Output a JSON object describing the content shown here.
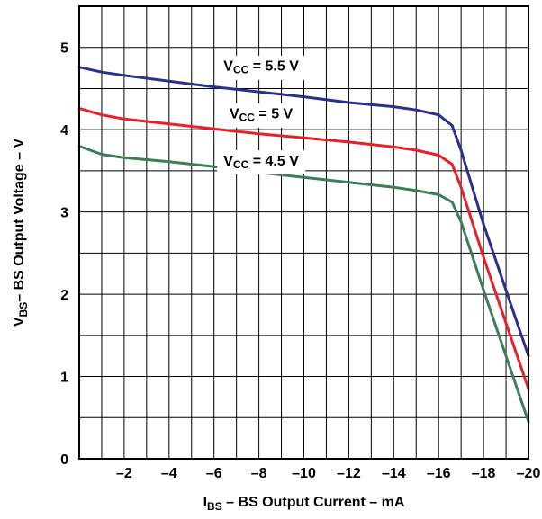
{
  "chart_data": {
    "type": "line",
    "xlabel": {
      "main": "I",
      "sub": "BS",
      "rest": " – BS Output Current – mA"
    },
    "ylabel": {
      "main": "V",
      "sub": "BS",
      "rest": "– BS Output Voltage – V"
    },
    "xlim": [
      0,
      -20
    ],
    "ylim": [
      0,
      5.5
    ],
    "x_ticks": [
      0,
      -2,
      -4,
      -6,
      -8,
      -10,
      -12,
      -14,
      -16,
      -18,
      -20
    ],
    "x_tick_labels": [
      "",
      "–2",
      "–4",
      "–6",
      "–8",
      "–10",
      "–12",
      "–14",
      "–16",
      "–18",
      "–20"
    ],
    "y_ticks": [
      0,
      1,
      2,
      3,
      4,
      5
    ],
    "y_tick_labels": [
      "0",
      "1",
      "2",
      "3",
      "4",
      "5"
    ],
    "grid": true,
    "series": [
      {
        "name": {
          "main": "V",
          "sub": "CC",
          "rest": " = 5.5 V"
        },
        "color": "#2b2f8f",
        "x": [
          0,
          -1,
          -2,
          -4,
          -6,
          -8,
          -10,
          -12,
          -14,
          -15,
          -16,
          -16.6,
          -17,
          -18,
          -19,
          -20
        ],
        "y": [
          4.76,
          4.7,
          4.66,
          4.59,
          4.52,
          4.46,
          4.4,
          4.33,
          4.28,
          4.24,
          4.18,
          4.05,
          3.75,
          2.85,
          2.05,
          1.25
        ]
      },
      {
        "name": {
          "main": "V",
          "sub": "CC",
          "rest": " = 5 V"
        },
        "color": "#e8202a",
        "x": [
          0,
          -1,
          -2,
          -4,
          -6,
          -8,
          -10,
          -12,
          -14,
          -15,
          -16,
          -16.6,
          -17,
          -18,
          -19,
          -20
        ],
        "y": [
          4.26,
          4.18,
          4.13,
          4.07,
          4.01,
          3.95,
          3.9,
          3.85,
          3.79,
          3.75,
          3.69,
          3.58,
          3.3,
          2.45,
          1.65,
          0.85
        ]
      },
      {
        "name": {
          "main": "V",
          "sub": "CC",
          "rest": " = 4.5 V"
        },
        "color": "#3f7d5a",
        "x": [
          0,
          -1,
          -2,
          -4,
          -6,
          -8,
          -10,
          -12,
          -14,
          -15,
          -16,
          -16.6,
          -17,
          -18,
          -19,
          -20
        ],
        "y": [
          3.8,
          3.7,
          3.66,
          3.61,
          3.55,
          3.48,
          3.42,
          3.36,
          3.3,
          3.26,
          3.21,
          3.12,
          2.88,
          2.05,
          1.25,
          0.45
        ]
      }
    ],
    "series_label_positions": [
      {
        "x": -8.1,
        "y": 4.76
      },
      {
        "x": -8.1,
        "y": 4.18
      },
      {
        "x": -8.1,
        "y": 3.61
      }
    ]
  }
}
